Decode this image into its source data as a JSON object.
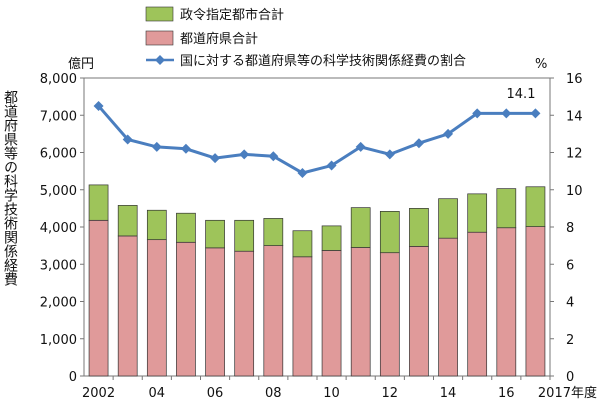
{
  "chart_data": {
    "type": "bar",
    "categories": [
      "2002",
      "2003",
      "2004",
      "2005",
      "2006",
      "2007",
      "2008",
      "2009",
      "2010",
      "2011",
      "2012",
      "2013",
      "2014",
      "2015",
      "2016",
      "2017"
    ],
    "x_tick_labels": [
      "2002",
      "",
      "04",
      "",
      "06",
      "",
      "08",
      "",
      "10",
      "",
      "12",
      "",
      "14",
      "",
      "16",
      "2017年度"
    ],
    "series": [
      {
        "name": "都道府県合計",
        "kind": "bar",
        "stack": "main",
        "color": "#e09a9a",
        "values": [
          4180,
          3760,
          3660,
          3590,
          3440,
          3350,
          3500,
          3200,
          3370,
          3450,
          3310,
          3480,
          3700,
          3860,
          3980,
          4010
        ]
      },
      {
        "name": "政令指定都市合計",
        "kind": "bar",
        "stack": "main",
        "color": "#9ec45a",
        "values": [
          950,
          820,
          790,
          780,
          740,
          830,
          730,
          700,
          660,
          1070,
          1110,
          1020,
          1060,
          1030,
          1050,
          1070
        ]
      },
      {
        "name": "国に対する都道府県等の科学技術関係経費の割合",
        "kind": "line",
        "axis": "right",
        "color": "#4a7ebf",
        "values": [
          14.5,
          12.7,
          12.3,
          12.2,
          11.7,
          11.9,
          11.8,
          10.9,
          11.3,
          12.3,
          11.9,
          12.5,
          13.0,
          14.1,
          14.1,
          14.1
        ]
      }
    ],
    "ylim": [
      0,
      8000
    ],
    "y2lim": [
      0,
      16
    ],
    "y_ticks": [
      "0",
      "1,000",
      "2,000",
      "3,000",
      "4,000",
      "5,000",
      "6,000",
      "7,000",
      "8,000"
    ],
    "y2_ticks": [
      "0",
      "2",
      "4",
      "6",
      "8",
      "10",
      "12",
      "14",
      "16"
    ],
    "y_unit": "億円",
    "y2_unit": "%",
    "ylabel": "都道府県等の科学技術関係経費",
    "annotation": "14.1",
    "legend_position": "top-center",
    "grid": false
  }
}
